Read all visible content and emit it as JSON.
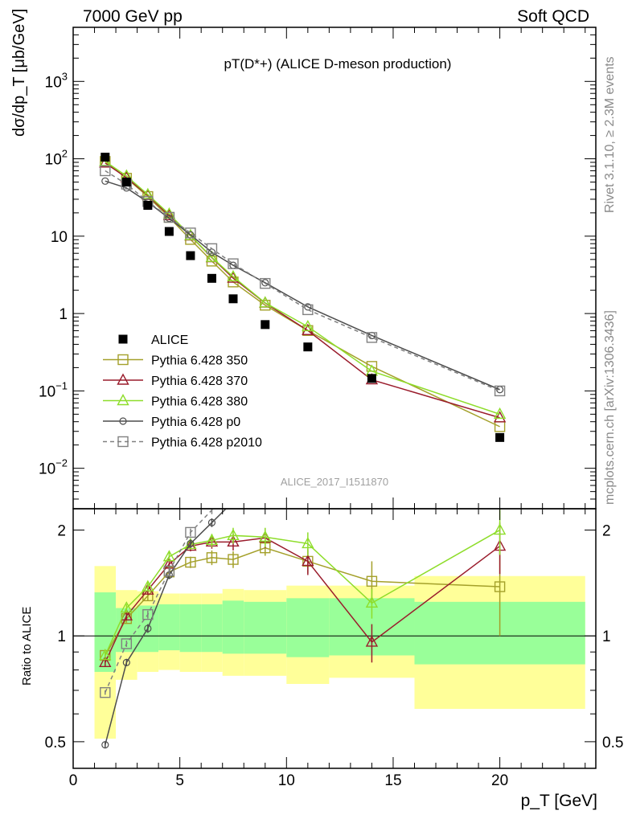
{
  "header": {
    "left": "7000 GeV pp",
    "right": "Soft QCD",
    "side_top": "Rivet 3.1.10, ≥ 2.3M events",
    "side_bottom": "mcplots.cern.ch [arXiv:1306.3436]"
  },
  "chart_data": {
    "type": "line",
    "title": "pT(D*+) (ALICE D-meson production)",
    "analysis_label": "ALICE_2017_I1511870",
    "xlabel": "p_T [GeV]",
    "ylabel": "dσ/dp_T [μb/GeV]",
    "ratio_ylabel": "Ratio to ALICE",
    "xlim": [
      0,
      24.5
    ],
    "ylim": [
      0.003,
      5000
    ],
    "yscale": "log",
    "ratio_ylim": [
      0.42,
      2.3
    ],
    "ratio_yscale": "log",
    "x_ticks": [
      "0",
      "5",
      "10",
      "15",
      "20"
    ],
    "y_ticks": [
      "10^-2",
      "10^-1",
      "1",
      "10",
      "10^2",
      "10^3"
    ],
    "ratio_ticks": [
      "0.5",
      "1",
      "2"
    ],
    "legend_position": "lower-left",
    "x": [
      1.5,
      2.5,
      3.5,
      4.5,
      5.5,
      6.5,
      7.5,
      9,
      11,
      14,
      20
    ],
    "x_bins": [
      [
        1,
        2
      ],
      [
        2,
        3
      ],
      [
        3,
        4
      ],
      [
        4,
        5
      ],
      [
        5,
        6
      ],
      [
        6,
        7
      ],
      [
        7,
        8
      ],
      [
        8,
        10
      ],
      [
        10,
        12
      ],
      [
        12,
        16
      ],
      [
        16,
        24
      ]
    ],
    "data": {
      "name": "ALICE",
      "values": [
        105,
        50,
        25,
        11.5,
        5.6,
        2.85,
        1.55,
        0.72,
        0.37,
        0.145,
        0.025
      ],
      "band_inner": [
        [
          0.79,
          1.33
        ],
        [
          0.9,
          1.2
        ],
        [
          0.9,
          1.22
        ],
        [
          0.91,
          1.23
        ],
        [
          0.9,
          1.23
        ],
        [
          0.9,
          1.23
        ],
        [
          0.89,
          1.26
        ],
        [
          0.89,
          1.25
        ],
        [
          0.87,
          1.28
        ],
        [
          0.88,
          1.28
        ],
        [
          0.83,
          1.25
        ]
      ],
      "band_outer": [
        [
          0.51,
          1.58
        ],
        [
          0.75,
          1.35
        ],
        [
          0.79,
          1.34
        ],
        [
          0.8,
          1.32
        ],
        [
          0.79,
          1.32
        ],
        [
          0.79,
          1.32
        ],
        [
          0.77,
          1.36
        ],
        [
          0.77,
          1.35
        ],
        [
          0.73,
          1.39
        ],
        [
          0.76,
          1.39
        ],
        [
          0.62,
          1.48
        ]
      ]
    },
    "series": [
      {
        "name": "Pythia 6.428 350",
        "color": "#a4a02a",
        "marker": "square",
        "dash": false,
        "ratio": [
          0.88,
          1.12,
          1.3,
          1.52,
          1.62,
          1.67,
          1.65,
          1.78,
          1.63,
          1.43,
          1.38
        ],
        "ratio_err": [
          0.02,
          0.03,
          0.04,
          0.05,
          0.06,
          0.08,
          0.09,
          0.09,
          0.12,
          0.2,
          0.38
        ]
      },
      {
        "name": "Pythia 6.428 370",
        "color": "#9a1c2c",
        "marker": "triangle",
        "dash": false,
        "ratio": [
          0.84,
          1.14,
          1.35,
          1.6,
          1.8,
          1.85,
          1.85,
          1.9,
          1.63,
          0.96,
          1.8
        ],
        "ratio_err": [
          0.02,
          0.03,
          0.04,
          0.05,
          0.06,
          0.08,
          0.1,
          0.12,
          0.14,
          0.12,
          0.3
        ]
      },
      {
        "name": "Pythia 6.428 380",
        "color": "#8edd2a",
        "marker": "triangle",
        "dash": false,
        "ratio": [
          0.88,
          1.2,
          1.38,
          1.68,
          1.82,
          1.87,
          1.93,
          1.91,
          1.83,
          1.24,
          2.0
        ],
        "ratio_err": [
          0.02,
          0.03,
          0.04,
          0.05,
          0.06,
          0.08,
          0.1,
          0.12,
          0.14,
          0.12,
          0.3
        ]
      },
      {
        "name": "Pythia 6.428 p0",
        "color": "#4d4d4d",
        "marker": "circle",
        "dash": false,
        "ratio": [
          0.49,
          0.84,
          1.05,
          1.49,
          1.83,
          2.1
        ],
        "ratio_err": [
          0.01,
          0.02,
          0.03,
          0.04,
          0.05,
          0.06
        ],
        "values": [
          51.5,
          42,
          27.5,
          17.0,
          10.4,
          6.2,
          4.2,
          2.5,
          1.22,
          0.52,
          0.104
        ]
      },
      {
        "name": "Pythia 6.428 p2010",
        "color": "#808080",
        "marker": "square",
        "dash": true,
        "ratio": [
          0.69,
          0.95,
          1.15,
          1.53,
          1.97,
          2.28
        ],
        "ratio_err": [
          0.01,
          0.02,
          0.03,
          0.04,
          0.05,
          0.06
        ],
        "values": [
          70,
          47,
          28,
          17.5,
          11.0,
          6.9,
          4.4,
          2.45,
          1.12,
          0.49,
          0.1
        ]
      }
    ]
  }
}
